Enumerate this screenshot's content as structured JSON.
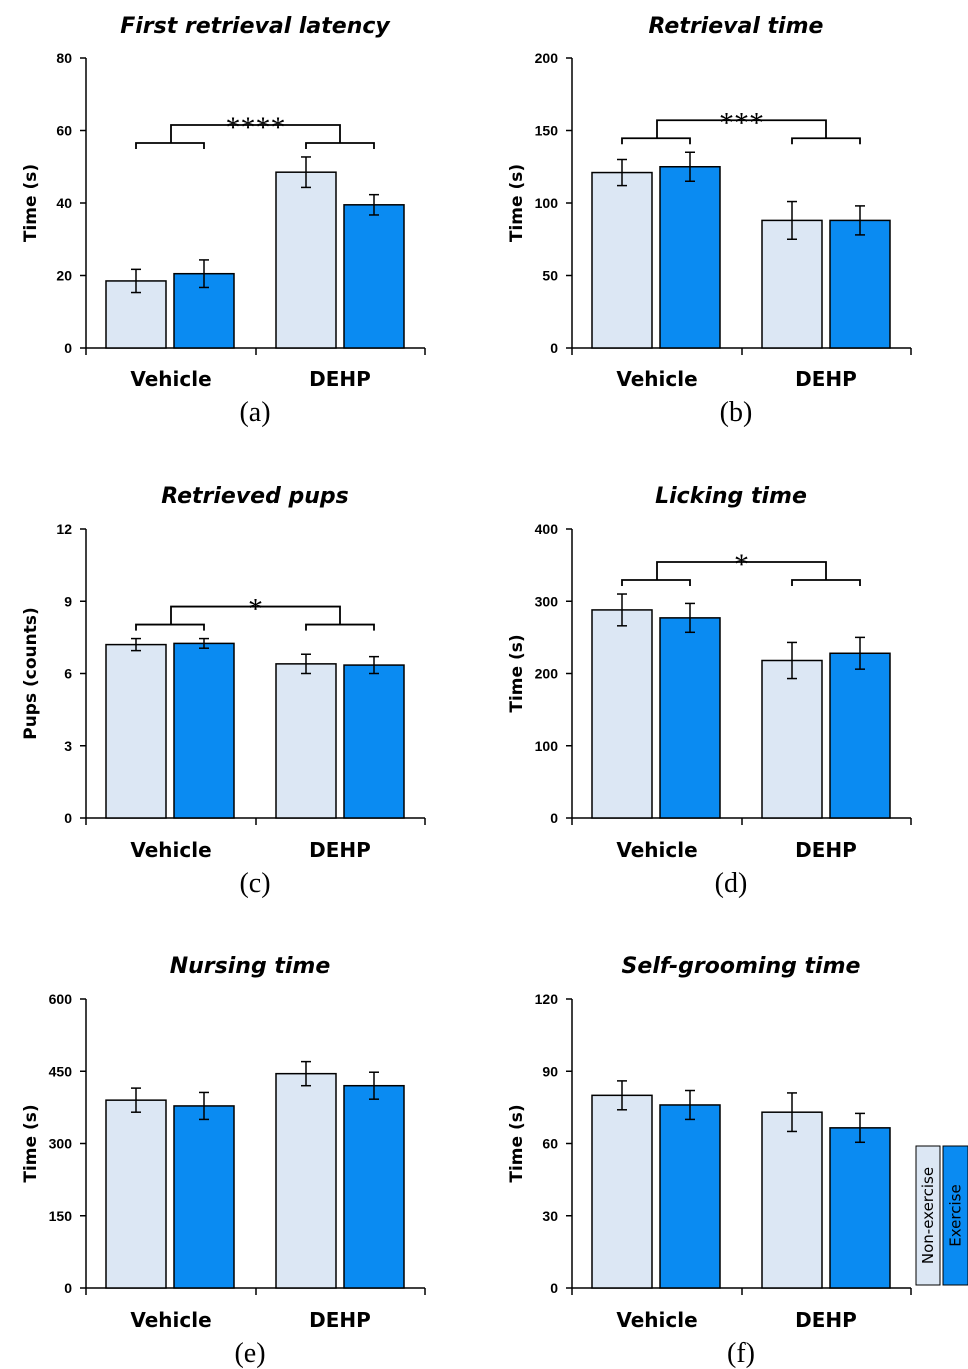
{
  "colors": {
    "non_exercise": "#dce7f4",
    "exercise": "#0a8bf2",
    "stroke": "#000000"
  },
  "legend": [
    {
      "label": "Non-exercise",
      "color": "#dce7f4"
    },
    {
      "label": "Exercise",
      "color": "#0a8bf2"
    }
  ],
  "chart_data": [
    {
      "type": "bar",
      "panel_label": "(a)",
      "title": "First retrieval latency",
      "ylabel": "Time (s)",
      "ylim": [
        0,
        80
      ],
      "yticks": [
        0,
        20,
        40,
        60,
        80
      ],
      "categories": [
        "Vehicle",
        "DEHP"
      ],
      "series": [
        {
          "name": "Non-exercise",
          "values": [
            18.5,
            48.5
          ],
          "errors": [
            3.2,
            4.2
          ]
        },
        {
          "name": "Exercise",
          "values": [
            20.5,
            39.5
          ],
          "errors": [
            3.8,
            2.8
          ]
        }
      ],
      "significance": "****"
    },
    {
      "type": "bar",
      "panel_label": "(b)",
      "title": "Retrieval time",
      "ylabel": "Time (s)",
      "ylim": [
        0,
        200
      ],
      "yticks": [
        0,
        50,
        100,
        150,
        200
      ],
      "categories": [
        "Vehicle",
        "DEHP"
      ],
      "series": [
        {
          "name": "Non-exercise",
          "values": [
            121,
            88
          ],
          "errors": [
            9,
            13
          ]
        },
        {
          "name": "Exercise",
          "values": [
            125,
            88
          ],
          "errors": [
            10,
            10
          ]
        }
      ],
      "significance": "***"
    },
    {
      "type": "bar",
      "panel_label": "(c)",
      "title": "Retrieved pups",
      "ylabel": "Pups (counts)",
      "ylim": [
        0,
        12
      ],
      "yticks": [
        0,
        3,
        6,
        9,
        12
      ],
      "categories": [
        "Vehicle",
        "DEHP"
      ],
      "series": [
        {
          "name": "Non-exercise",
          "values": [
            7.2,
            6.4
          ],
          "errors": [
            0.25,
            0.4
          ]
        },
        {
          "name": "Exercise",
          "values": [
            7.25,
            6.35
          ],
          "errors": [
            0.2,
            0.35
          ]
        }
      ],
      "significance": "*"
    },
    {
      "type": "bar",
      "panel_label": "(d)",
      "title": "Licking time",
      "ylabel": "Time (s)",
      "ylim": [
        0,
        400
      ],
      "yticks": [
        0,
        100,
        200,
        300,
        400
      ],
      "categories": [
        "Vehicle",
        "DEHP"
      ],
      "series": [
        {
          "name": "Non-exercise",
          "values": [
            288,
            218
          ],
          "errors": [
            22,
            25
          ]
        },
        {
          "name": "Exercise",
          "values": [
            277,
            228
          ],
          "errors": [
            20,
            22
          ]
        }
      ],
      "significance": "*"
    },
    {
      "type": "bar",
      "panel_label": "(e)",
      "title": "Nursing time",
      "ylabel": "Time (s)",
      "ylim": [
        0,
        600
      ],
      "yticks": [
        0,
        150,
        300,
        450,
        600
      ],
      "categories": [
        "Vehicle",
        "DEHP"
      ],
      "series": [
        {
          "name": "Non-exercise",
          "values": [
            390,
            445
          ],
          "errors": [
            25,
            25
          ]
        },
        {
          "name": "Exercise",
          "values": [
            378,
            420
          ],
          "errors": [
            28,
            28
          ]
        }
      ],
      "significance": ""
    },
    {
      "type": "bar",
      "panel_label": "(f)",
      "title": "Self-grooming time",
      "ylabel": "Time (s)",
      "ylim": [
        0,
        120
      ],
      "yticks": [
        0,
        30,
        60,
        90,
        120
      ],
      "categories": [
        "Vehicle",
        "DEHP"
      ],
      "series": [
        {
          "name": "Non-exercise",
          "values": [
            80,
            73
          ],
          "errors": [
            6,
            8
          ]
        },
        {
          "name": "Exercise",
          "values": [
            76,
            66.5
          ],
          "errors": [
            6,
            6
          ]
        }
      ],
      "significance": ""
    }
  ]
}
